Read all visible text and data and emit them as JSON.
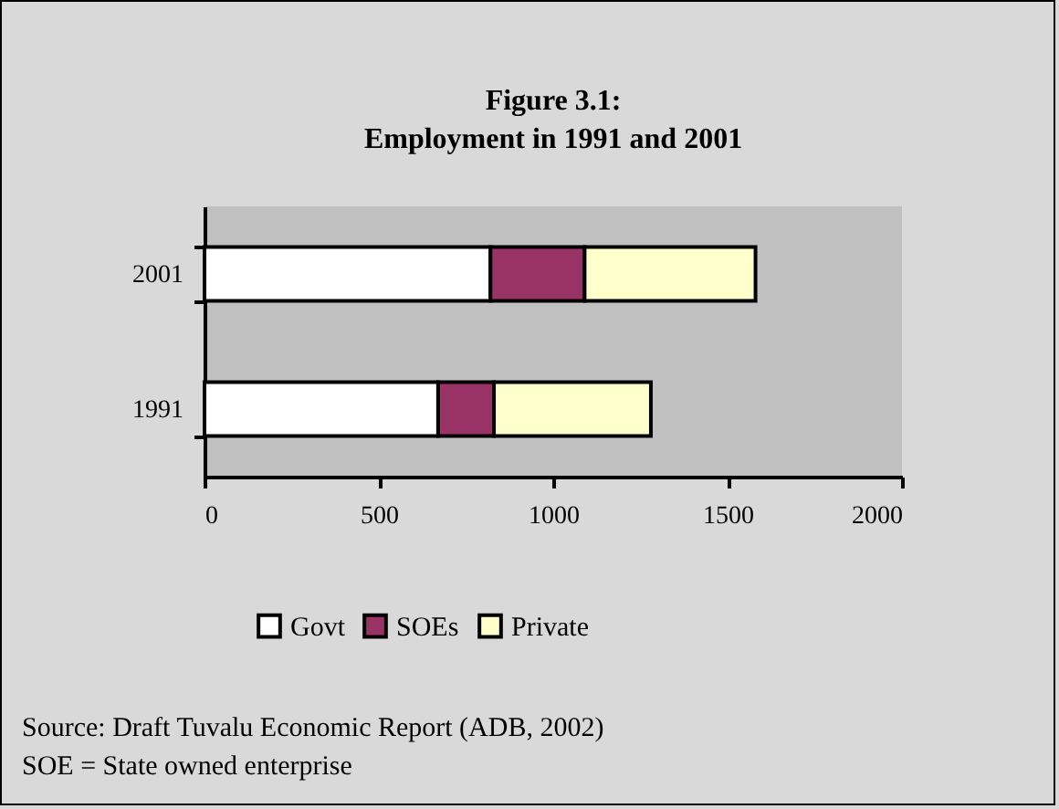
{
  "chart_data": {
    "type": "bar",
    "orientation": "horizontal",
    "stacked": true,
    "title": "Figure 3.1:\nEmployment in 1991 and 2001",
    "categories": [
      "2001",
      "1991"
    ],
    "series": [
      {
        "name": "Govt",
        "color": "#ffffff",
        "values": [
          820,
          670
        ]
      },
      {
        "name": "SOEs",
        "color": "#993366",
        "values": [
          270,
          160
        ]
      },
      {
        "name": "Private",
        "color": "#ffffcc",
        "values": [
          490,
          450
        ]
      }
    ],
    "xlim": [
      0,
      2000
    ],
    "xticks": [
      0,
      500,
      1000,
      1500,
      2000
    ],
    "grid": false,
    "legend": "bottom",
    "annotations": [
      "Source:   Draft Tuvalu Economic Report (ADB, 2002)",
      "SOE  =   State owned enterprise"
    ]
  }
}
